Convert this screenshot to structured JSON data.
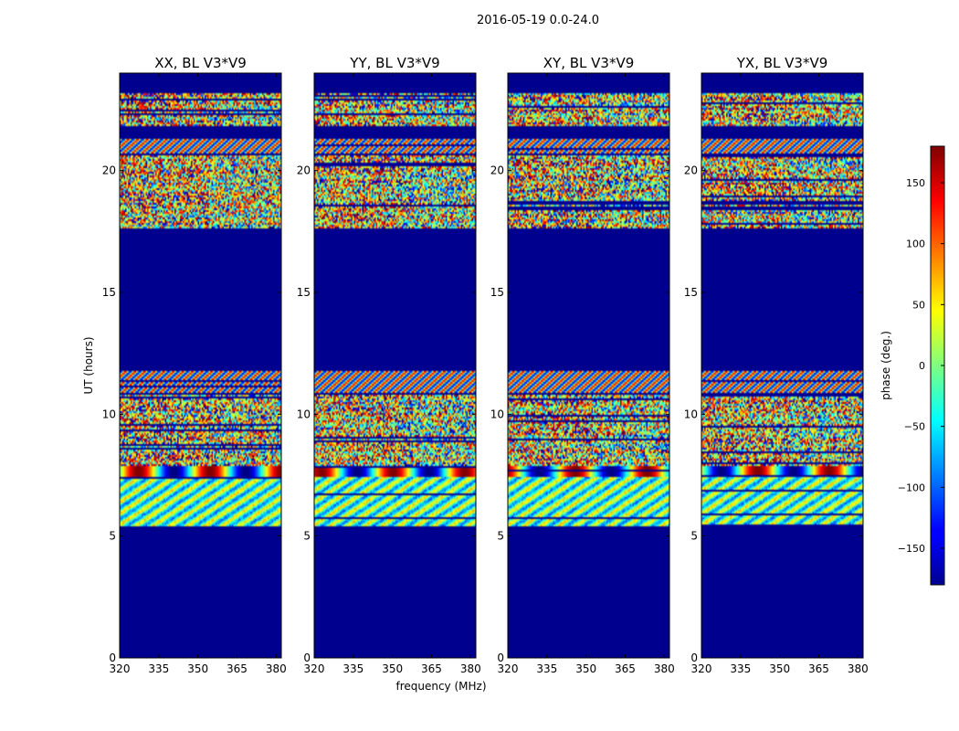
{
  "chart_data": {
    "type": "heatmap",
    "suptitle": "2016-05-19 0.0-24.0",
    "xlabel": "frequency (MHz)",
    "ylabel": "UT (hours)",
    "xlim": [
      320,
      382
    ],
    "ylim": [
      0,
      24
    ],
    "xticks": [
      320,
      335,
      350,
      365,
      380
    ],
    "yticks": [
      0,
      5,
      10,
      15,
      20
    ],
    "colorbar": {
      "label": "phase (deg.)",
      "colormap": "jet",
      "range": [
        -180,
        180
      ],
      "ticks": [
        150,
        100,
        50,
        0,
        -50,
        -100,
        -150
      ],
      "tick_labels": [
        "150",
        "100",
        "50",
        "0",
        "−50",
        "−100",
        "−150"
      ]
    },
    "masked_color": "#00008f",
    "data_bands_hours": [
      [
        5.4,
        10.8
      ],
      [
        10.9,
        11.8
      ],
      [
        17.6,
        20.6
      ],
      [
        20.7,
        21.3
      ],
      [
        21.8,
        23.2
      ]
    ],
    "panels": [
      {
        "title": "XX, BL V3*V9",
        "polarization": "XX",
        "baseline": "V3*V9"
      },
      {
        "title": "YY, BL V3*V9",
        "polarization": "YY",
        "baseline": "V3*V9"
      },
      {
        "title": "XY, BL V3*V9",
        "polarization": "XY",
        "baseline": "V3*V9"
      },
      {
        "title": "YX, BL V3*V9",
        "polarization": "YX",
        "baseline": "V3*V9"
      }
    ]
  }
}
